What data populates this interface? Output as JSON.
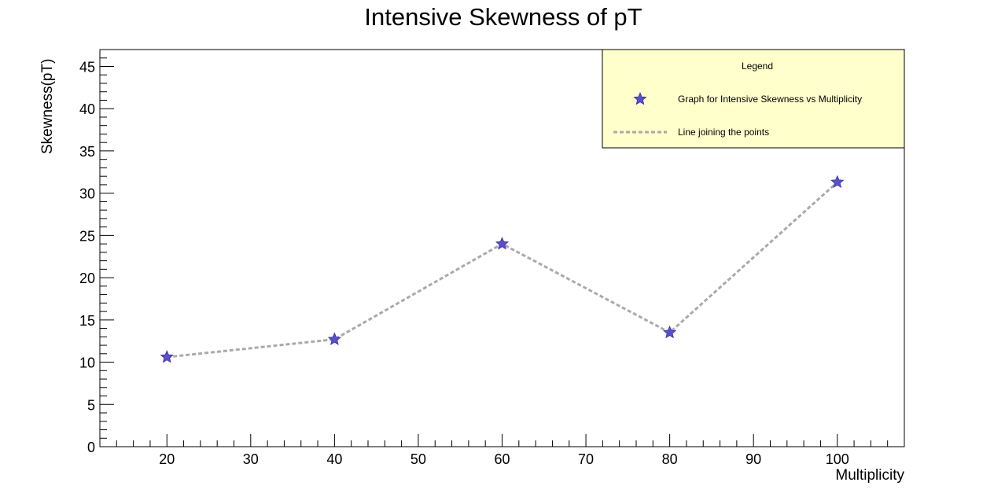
{
  "chart_data": {
    "type": "line",
    "title": "Intensive Skewness of pT",
    "xlabel": "Multiplicity",
    "ylabel": "Skewness(pT)",
    "xlim": [
      12,
      108
    ],
    "ylim": [
      0,
      47
    ],
    "x_ticks": [
      20,
      30,
      40,
      50,
      60,
      70,
      80,
      90,
      100
    ],
    "y_ticks": [
      0,
      5,
      10,
      15,
      20,
      25,
      30,
      35,
      40,
      45
    ],
    "series": [
      {
        "x": [
          20,
          40,
          60,
          80,
          100
        ],
        "values": [
          10.6,
          12.7,
          24.0,
          13.5,
          31.3
        ]
      }
    ],
    "marker": "star",
    "marker_color": "#5a4fcf",
    "line_color": "#aaaaaa",
    "line_style": "dashed",
    "grid": false,
    "legend": {
      "title": "Legend",
      "placement": "top-right",
      "background": "#ffffcc",
      "entries": [
        {
          "label": "Graph for Intensive Skewness vs Multiplicity",
          "kind": "marker"
        },
        {
          "label": "Line joining the points",
          "kind": "line"
        }
      ]
    }
  }
}
